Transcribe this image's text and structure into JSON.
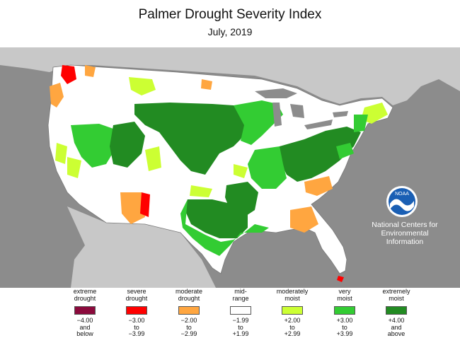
{
  "header": {
    "title": "Palmer Drought Severity Index",
    "subtitle": "July, 2019"
  },
  "attribution": {
    "logo_text": "NOAA",
    "org_line1": "National Centers for",
    "org_line2": "Environmental",
    "org_line3": "Information"
  },
  "colors": {
    "ocean": "#8c8c8c",
    "neighbor_land": "#c8c8c8",
    "extreme_drought": "#8b0a3c",
    "severe_drought": "#ff0000",
    "moderate_drought": "#ffa640",
    "mid_range": "#ffffff",
    "moderately_moist": "#ccff33",
    "very_moist": "#33cc33",
    "extremely_moist": "#228b22"
  },
  "legend": [
    {
      "label1": "extreme",
      "label2": "drought",
      "range1": "−4.00",
      "range2": "and",
      "range3": "below",
      "color": "#8b0a3c"
    },
    {
      "label1": "severe",
      "label2": "drought",
      "range1": "−3.00",
      "range2": "to",
      "range3": "−3.99",
      "color": "#ff0000"
    },
    {
      "label1": "moderate",
      "label2": "drought",
      "range1": "−2.00",
      "range2": "to",
      "range3": "−2.99",
      "color": "#ffa640"
    },
    {
      "label1": "mid-",
      "label2": "range",
      "range1": "−1.99",
      "range2": "to",
      "range3": "+1.99",
      "color": "#ffffff"
    },
    {
      "label1": "moderately",
      "label2": "moist",
      "range1": "+2.00",
      "range2": "to",
      "range3": "+2.99",
      "color": "#ccff33"
    },
    {
      "label1": "very",
      "label2": "moist",
      "range1": "+3.00",
      "range2": "to",
      "range3": "+3.99",
      "color": "#33cc33"
    },
    {
      "label1": "extremely",
      "label2": "moist",
      "range1": "+4.00",
      "range2": "and",
      "range3": "above",
      "color": "#228b22"
    }
  ]
}
